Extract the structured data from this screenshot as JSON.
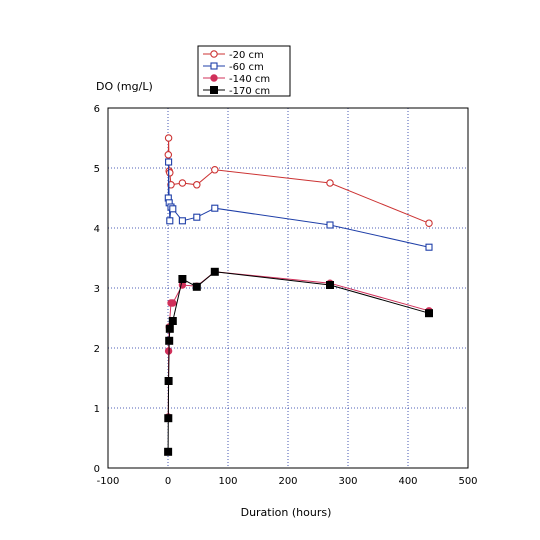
{
  "chart_data": {
    "type": "line",
    "title": "",
    "xlabel": "Duration (hours)",
    "ylabel": "DO (mg/L)",
    "xlim": [
      -100,
      500
    ],
    "ylim": [
      0,
      6
    ],
    "x_ticks": [
      "-100",
      "0",
      "100",
      "200",
      "300",
      "400",
      "500"
    ],
    "y_ticks": [
      "0",
      "1",
      "2",
      "3",
      "4",
      "5",
      "6"
    ],
    "grid": true,
    "legend_position": "top-left, above plot",
    "series": [
      {
        "name": "-20 cm",
        "color": "#cc3333",
        "marker": "open-circle",
        "x": [
          0.5,
          1,
          2,
          3,
          5,
          24,
          48,
          78,
          270,
          435
        ],
        "y": [
          5.22,
          5.5,
          4.95,
          4.92,
          4.72,
          4.75,
          4.72,
          4.97,
          4.75,
          4.08
        ]
      },
      {
        "name": "-60 cm",
        "color": "#1f3fa8",
        "marker": "open-square",
        "x": [
          0.5,
          1,
          2,
          3,
          5,
          8,
          24,
          48,
          78,
          270,
          435
        ],
        "y": [
          4.5,
          5.1,
          4.42,
          4.12,
          4.35,
          4.32,
          4.12,
          4.18,
          4.33,
          4.05,
          3.68
        ]
      },
      {
        "name": "-140 cm",
        "color": "#d0305a",
        "marker": "filled-circle",
        "x": [
          0.5,
          1,
          2,
          5,
          8,
          24,
          48,
          78,
          270,
          435
        ],
        "y": [
          0.85,
          1.95,
          2.35,
          2.75,
          2.75,
          3.05,
          3.03,
          3.27,
          3.08,
          2.62
        ]
      },
      {
        "name": "-170 cm",
        "color": "#000000",
        "marker": "filled-square",
        "x": [
          0.2,
          0.5,
          1,
          2,
          3,
          8,
          24,
          48,
          78,
          270,
          435
        ],
        "y": [
          0.27,
          0.83,
          1.45,
          2.12,
          2.32,
          2.45,
          3.15,
          3.02,
          3.27,
          3.05,
          2.58
        ]
      }
    ]
  }
}
